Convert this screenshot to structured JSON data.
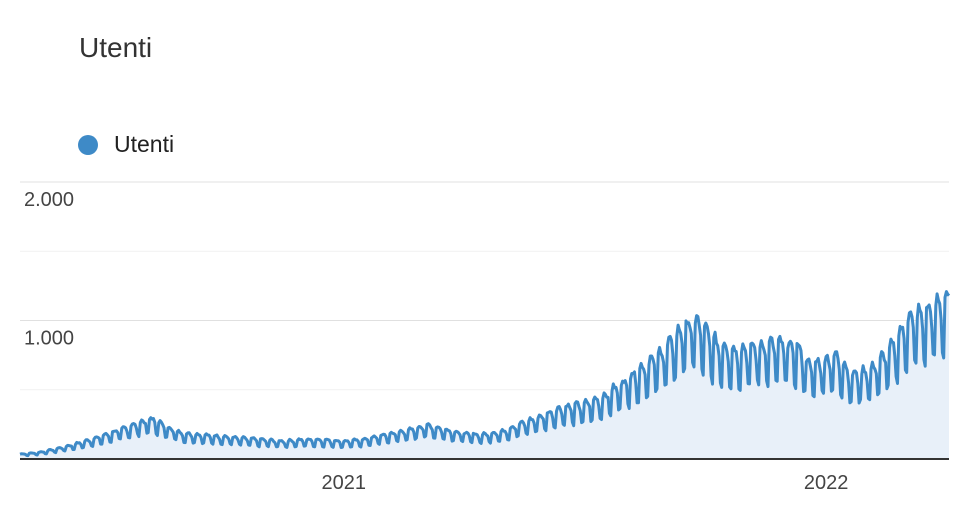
{
  "chart_data": {
    "type": "area",
    "title": "Utenti",
    "legend": {
      "position": "top-left",
      "entries": [
        "Utenti"
      ]
    },
    "grid": true,
    "xlabel": "",
    "ylabel": "",
    "ylim": [
      0,
      2000
    ],
    "y_ticks": [
      {
        "value": 1000,
        "label": "1.000"
      },
      {
        "value": 2000,
        "label": "2.000"
      }
    ],
    "x_ticks": [
      {
        "value": "2021-01-01",
        "label": "2021"
      },
      {
        "value": "2022-01-01",
        "label": "2022"
      }
    ],
    "x_range": [
      "2020-05-01",
      "2022-04-04"
    ],
    "series": [
      {
        "name": "Utenti",
        "color": "#3e8ac7",
        "fill": "#e8f0f9",
        "weekly_points": [
          [
            "2020-05-01",
            30
          ],
          [
            "2020-05-15",
            40
          ],
          [
            "2020-06-01",
            70
          ],
          [
            "2020-06-15",
            100
          ],
          [
            "2020-07-01",
            140
          ],
          [
            "2020-07-15",
            180
          ],
          [
            "2020-08-01",
            230
          ],
          [
            "2020-08-10",
            250
          ],
          [
            "2020-08-20",
            200
          ],
          [
            "2020-09-01",
            160
          ],
          [
            "2020-09-15",
            150
          ],
          [
            "2020-10-01",
            140
          ],
          [
            "2020-10-15",
            130
          ],
          [
            "2020-11-01",
            120
          ],
          [
            "2020-11-15",
            110
          ],
          [
            "2020-12-01",
            120
          ],
          [
            "2020-12-15",
            120
          ],
          [
            "2021-01-01",
            110
          ],
          [
            "2021-01-15",
            120
          ],
          [
            "2021-02-01",
            150
          ],
          [
            "2021-02-20",
            180
          ],
          [
            "2021-03-05",
            210
          ],
          [
            "2021-03-15",
            190
          ],
          [
            "2021-04-01",
            160
          ],
          [
            "2021-04-15",
            150
          ],
          [
            "2021-05-01",
            170
          ],
          [
            "2021-05-15",
            220
          ],
          [
            "2021-06-01",
            270
          ],
          [
            "2021-06-15",
            320
          ],
          [
            "2021-07-01",
            340
          ],
          [
            "2021-07-15",
            380
          ],
          [
            "2021-08-01",
            480
          ],
          [
            "2021-08-15",
            570
          ],
          [
            "2021-09-01",
            680
          ],
          [
            "2021-09-15",
            820
          ],
          [
            "2021-09-25",
            860
          ],
          [
            "2021-10-10",
            720
          ],
          [
            "2021-10-25",
            670
          ],
          [
            "2021-11-10",
            700
          ],
          [
            "2021-11-25",
            720
          ],
          [
            "2021-12-10",
            700
          ],
          [
            "2021-12-20",
            580
          ],
          [
            "2022-01-01",
            620
          ],
          [
            "2022-01-10",
            640
          ],
          [
            "2022-01-20",
            520
          ],
          [
            "2022-02-05",
            560
          ],
          [
            "2022-02-20",
            700
          ],
          [
            "2022-03-05",
            880
          ],
          [
            "2022-03-20",
            920
          ],
          [
            "2022-04-01",
            1000
          ]
        ],
        "daily_swing_fraction": 0.3
      }
    ]
  }
}
